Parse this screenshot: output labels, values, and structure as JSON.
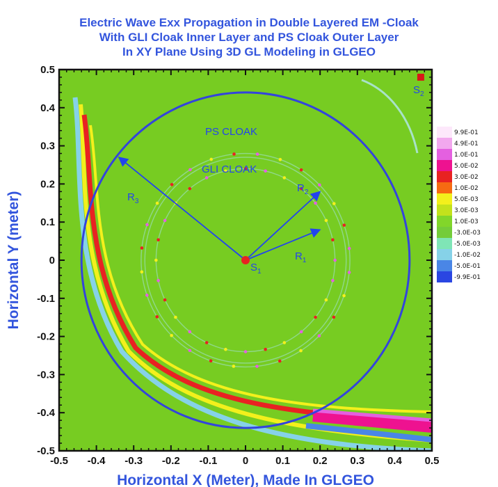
{
  "chart_data": {
    "type": "heatmap",
    "title_lines": [
      "Electric Wave Exx Propagation in Double Layered EM -Cloak",
      "With GLI Cloak Inner Layer and  PS Cloak Outer Layer",
      "In XY Plane Using 3D GL Modeling in GLGEO"
    ],
    "xlabel": "Horizontal X (Meter), Made In GLGEO",
    "ylabel": "Horizontal Y (meter)",
    "xlim": [
      -0.5,
      0.5
    ],
    "ylim": [
      -0.5,
      0.5
    ],
    "x_ticks": [
      "-0.5",
      "-0.4",
      "-0.3",
      "-0.2",
      "-0.1",
      "0",
      "0.1",
      "0.2",
      "0.3",
      "0.4",
      "0.5"
    ],
    "y_ticks": [
      "0.5",
      "0.4",
      "0.3",
      "0.2",
      "0.1",
      "0",
      "-0.1",
      "-0.2",
      "-0.3",
      "-0.4",
      "-0.5"
    ],
    "grid": false,
    "legend_position": "right",
    "background_color": "#77cc22",
    "legend": [
      {
        "label": "9.9E-01",
        "color": "#fde8fb"
      },
      {
        "label": "4.9E-01",
        "color": "#f2a8ee"
      },
      {
        "label": "1.0E-01",
        "color": "#e460e0"
      },
      {
        "label": "5.0E-02",
        "color": "#ee1290"
      },
      {
        "label": "3.0E-02",
        "color": "#e82222"
      },
      {
        "label": "1.0E-02",
        "color": "#f66a12"
      },
      {
        "label": "5.0E-03",
        "color": "#f3f01c"
      },
      {
        "label": "3.0E-03",
        "color": "#c3e21c"
      },
      {
        "label": "1.0E-03",
        "color": "#82d62a"
      },
      {
        "label": "-3.0E-03",
        "color": "#74cc3a"
      },
      {
        "label": "-5.0E-03",
        "color": "#7fe5b6"
      },
      {
        "label": "-1.0E-02",
        "color": "#86d2e8"
      },
      {
        "label": "-5.0E-01",
        "color": "#4a86e6"
      },
      {
        "label": "-9.9E-01",
        "color": "#2a46e2"
      }
    ],
    "circles": {
      "ps_outer_radius": 0.44,
      "gli_ring_radii": [
        0.24,
        0.27,
        0.28
      ]
    },
    "annotations": {
      "ps_cloak": "PS CLOAK",
      "gli_cloak": "GLI CLOAK",
      "r1": "R",
      "r1_sub": "1",
      "r2": "R",
      "r2_sub": "2",
      "r3": "R",
      "r3_sub": "3",
      "s1": "S",
      "s1_sub": "1",
      "s2": "S",
      "s2_sub": "2"
    },
    "sources": {
      "s1": {
        "x": 0.0,
        "y": 0.0
      },
      "s2": {
        "x": 0.47,
        "y": 0.48
      }
    },
    "radius_arrows": {
      "r1": {
        "x": 0.2,
        "y": 0.08
      },
      "r2": {
        "x": 0.2,
        "y": 0.18
      },
      "r3": {
        "x": -0.34,
        "y": 0.27
      }
    }
  }
}
